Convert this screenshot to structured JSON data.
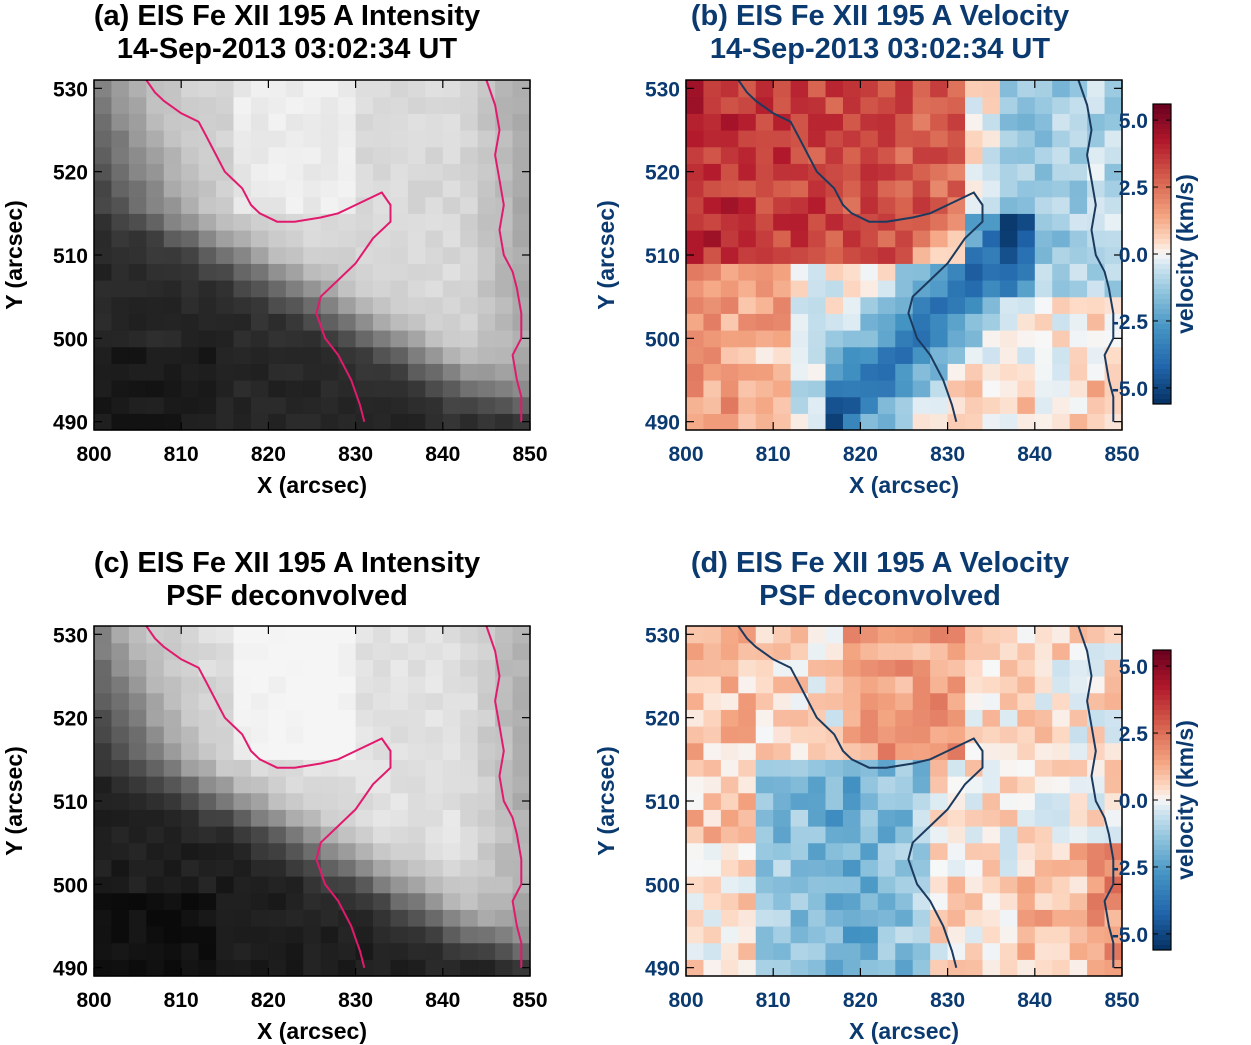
{
  "colors": {
    "intensity_title": "#000000",
    "velocity_title": "#0b3a70",
    "intensity_contour": "#e21a6e",
    "velocity_contour": "#1c3a5e",
    "velocity_pos": "#67001f",
    "velocity_zero": "#f7f7f7",
    "velocity_neg": "#053061"
  },
  "colormaps": {
    "intensity": "gray",
    "velocity": "RdBu_r"
  },
  "chart_data": [
    {
      "type": "heatmap",
      "panel": "a",
      "quantity": "intensity",
      "title": [
        "(a) EIS Fe XII 195 A Intensity",
        "14-Sep-2013 03:02:34 UT"
      ],
      "xlabel": "X (arcsec)",
      "ylabel": "Y (arcsec)",
      "xlim": [
        800,
        850
      ],
      "ylim": [
        489,
        531
      ],
      "xticks": [
        "800",
        "810",
        "820",
        "830",
        "840",
        "850"
      ],
      "yticks": [
        "490",
        "500",
        "510",
        "520",
        "530"
      ],
      "xtick_values": [
        800,
        810,
        820,
        830,
        840,
        850
      ],
      "ytick_values": [
        490,
        500,
        510,
        520,
        530
      ]
    },
    {
      "type": "heatmap",
      "panel": "b",
      "quantity": "velocity",
      "title": [
        "(b) EIS Fe XII 195 A Velocity",
        "14-Sep-2013 03:02:34 UT"
      ],
      "xlabel": "X (arcsec)",
      "ylabel": "Y (arcsec)",
      "xlim": [
        800,
        850
      ],
      "ylim": [
        489,
        531
      ],
      "xticks": [
        "800",
        "810",
        "820",
        "830",
        "840",
        "850"
      ],
      "yticks": [
        "490",
        "500",
        "510",
        "520",
        "530"
      ],
      "xtick_values": [
        800,
        810,
        820,
        830,
        840,
        850
      ],
      "ytick_values": [
        490,
        500,
        510,
        520,
        530
      ],
      "colorbar": {
        "label": "velocity (km/s)",
        "range": [
          -5.6,
          5.6
        ],
        "ticks": [
          "5.0",
          "2.5",
          "0.0",
          "-2.5",
          "-5.0"
        ],
        "tick_values": [
          5.0,
          2.5,
          0.0,
          -2.5,
          -5.0
        ]
      }
    },
    {
      "type": "heatmap",
      "panel": "c",
      "quantity": "intensity",
      "title": [
        "(c) EIS Fe XII 195 A Intensity",
        "PSF deconvolved"
      ],
      "xlabel": "X (arcsec)",
      "ylabel": "Y (arcsec)",
      "xlim": [
        800,
        850
      ],
      "ylim": [
        489,
        531
      ],
      "xticks": [
        "800",
        "810",
        "820",
        "830",
        "840",
        "850"
      ],
      "yticks": [
        "490",
        "500",
        "510",
        "520",
        "530"
      ],
      "xtick_values": [
        800,
        810,
        820,
        830,
        840,
        850
      ],
      "ytick_values": [
        490,
        500,
        510,
        520,
        530
      ]
    },
    {
      "type": "heatmap",
      "panel": "d",
      "quantity": "velocity",
      "title": [
        "(d) EIS Fe XII 195 A Velocity",
        "PSF deconvolved"
      ],
      "xlabel": "X (arcsec)",
      "ylabel": "Y (arcsec)",
      "xlim": [
        800,
        850
      ],
      "ylim": [
        489,
        531
      ],
      "xticks": [
        "800",
        "810",
        "820",
        "830",
        "840",
        "850"
      ],
      "yticks": [
        "490",
        "500",
        "510",
        "520",
        "530"
      ],
      "xtick_values": [
        800,
        810,
        820,
        830,
        840,
        850
      ],
      "ytick_values": [
        490,
        500,
        510,
        520,
        530
      ],
      "colorbar": {
        "label": "velocity (km/s)",
        "range": [
          -5.6,
          5.6
        ],
        "ticks": [
          "5.0",
          "2.5",
          "0.0",
          "-2.5",
          "-5.0"
        ],
        "tick_values": [
          5.0,
          2.5,
          0.0,
          -2.5,
          -5.0
        ]
      }
    }
  ]
}
